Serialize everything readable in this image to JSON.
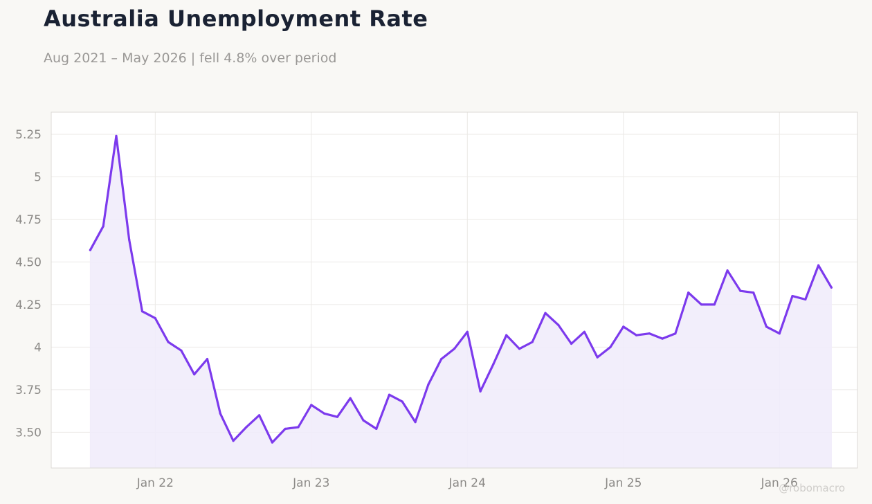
{
  "header": {
    "title": "Australia Unemployment Rate",
    "subtitle": "Aug 2021 – May 2026 | fell 4.8% over period"
  },
  "watermark": "@robomacro",
  "colors": {
    "line": "#7c3aed",
    "fill": "#f1ecfb",
    "grid": "#ebe9e6",
    "frame": "#dcdad6",
    "plot_bg": "#ffffff"
  },
  "chart_data": {
    "type": "area",
    "title": "Australia Unemployment Rate",
    "subtitle": "Aug 2021 – May 2026 | fell 4.8% over period",
    "xlabel": "",
    "ylabel": "",
    "grid": true,
    "legend": "none",
    "x_ticks": [
      {
        "date": "2022-01",
        "label": "Jan 22"
      },
      {
        "date": "2023-01",
        "label": "Jan 23"
      },
      {
        "date": "2024-01",
        "label": "Jan 24"
      },
      {
        "date": "2025-01",
        "label": "Jan 25"
      },
      {
        "date": "2026-01",
        "label": "Jan 26"
      }
    ],
    "y_ticks": [
      {
        "value": 3.5,
        "label": "3.50"
      },
      {
        "value": 3.75,
        "label": "3.75"
      },
      {
        "value": 4.0,
        "label": "4"
      },
      {
        "value": 4.25,
        "label": "4.25"
      },
      {
        "value": 4.5,
        "label": "4.50"
      },
      {
        "value": 4.75,
        "label": "4.75"
      },
      {
        "value": 5.0,
        "label": "5"
      },
      {
        "value": 5.25,
        "label": "5.25"
      }
    ],
    "xlim": [
      "2021-05",
      "2026-07"
    ],
    "ylim": [
      3.29,
      5.38
    ],
    "series": [
      {
        "x": [
          "2021-08",
          "2021-09",
          "2021-10",
          "2021-11",
          "2021-12",
          "2022-01",
          "2022-02",
          "2022-03",
          "2022-04",
          "2022-05",
          "2022-06",
          "2022-07",
          "2022-08",
          "2022-09",
          "2022-10",
          "2022-11",
          "2022-12",
          "2023-01",
          "2023-02",
          "2023-03",
          "2023-04",
          "2023-05",
          "2023-06",
          "2023-07",
          "2023-08",
          "2023-09",
          "2023-10",
          "2023-11",
          "2023-12",
          "2024-01",
          "2024-02",
          "2024-03",
          "2024-04",
          "2024-05",
          "2024-06",
          "2024-07",
          "2024-08",
          "2024-09",
          "2024-10",
          "2024-11",
          "2024-12",
          "2025-01",
          "2025-02",
          "2025-03",
          "2025-04",
          "2025-05",
          "2025-06",
          "2025-07",
          "2025-08",
          "2025-09",
          "2025-10",
          "2025-11",
          "2025-12",
          "2026-01",
          "2026-02",
          "2026-03",
          "2026-04",
          "2026-05"
        ],
        "y": [
          4.57,
          4.71,
          5.24,
          4.63,
          4.21,
          4.17,
          4.03,
          3.98,
          3.84,
          3.93,
          3.61,
          3.45,
          3.53,
          3.6,
          3.44,
          3.52,
          3.53,
          3.66,
          3.61,
          3.59,
          3.7,
          3.57,
          3.52,
          3.72,
          3.68,
          3.56,
          3.78,
          3.93,
          3.99,
          4.09,
          3.74,
          3.9,
          4.07,
          3.99,
          4.03,
          4.2,
          4.13,
          4.02,
          4.09,
          3.94,
          4.0,
          4.12,
          4.07,
          4.08,
          4.05,
          4.08,
          4.32,
          4.25,
          4.25,
          4.45,
          4.33,
          4.32,
          4.12,
          4.08,
          4.3,
          4.28,
          4.48,
          4.35
        ]
      }
    ]
  }
}
